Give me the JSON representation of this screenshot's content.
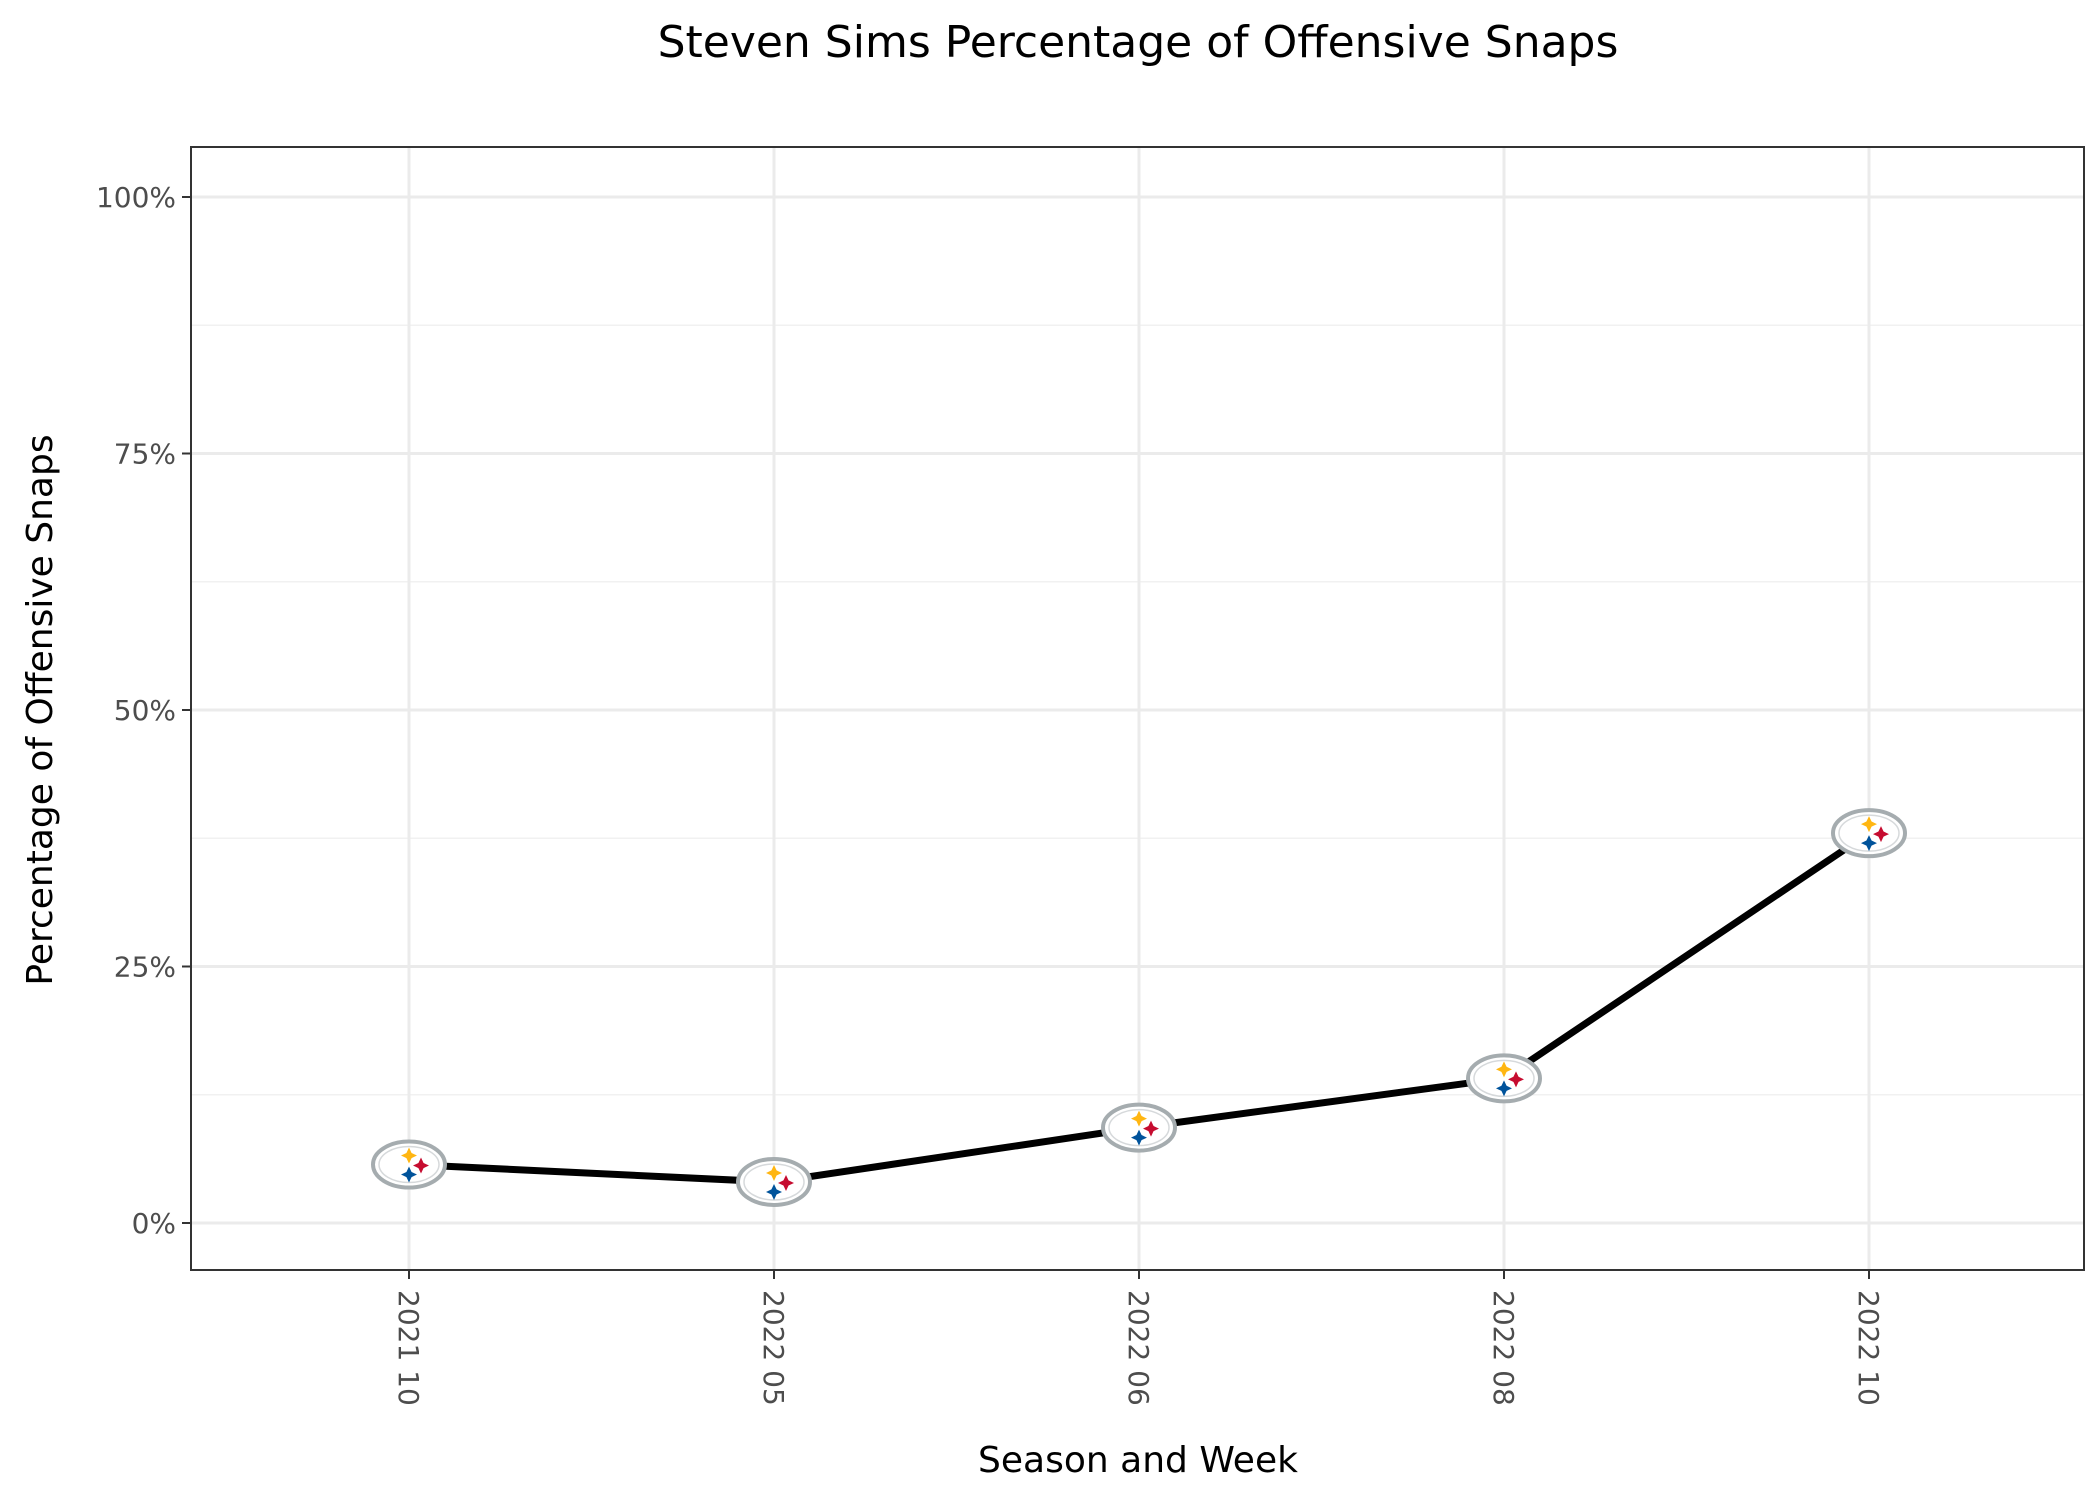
{
  "chart_data": {
    "type": "line",
    "title": "Steven Sims Percentage of Offensive Snaps",
    "xlabel": "Season and Week",
    "ylabel": "Percentage of Offensive Snaps",
    "categories": [
      "2021 10",
      "2022 05",
      "2022 06",
      "2022 08",
      "2022 10"
    ],
    "series": [
      {
        "values": [
          5.7,
          4.0,
          9.3,
          14.1,
          38.0
        ]
      }
    ],
    "ylim": [
      0,
      100
    ],
    "y_ticks": [
      0,
      25,
      50,
      75,
      100
    ],
    "y_tick_labels": [
      "0%",
      "25%",
      "50%",
      "75%",
      "100%"
    ],
    "grid": true,
    "legend": "none",
    "marker_icon": "steelers-logo-icon",
    "colors": {
      "line": "#000000",
      "logo_gold": "#FFB612",
      "logo_red": "#C60C30",
      "logo_blue": "#00539B",
      "logo_ring": "#A5ACAF",
      "logo_text": "Steelers"
    }
  }
}
